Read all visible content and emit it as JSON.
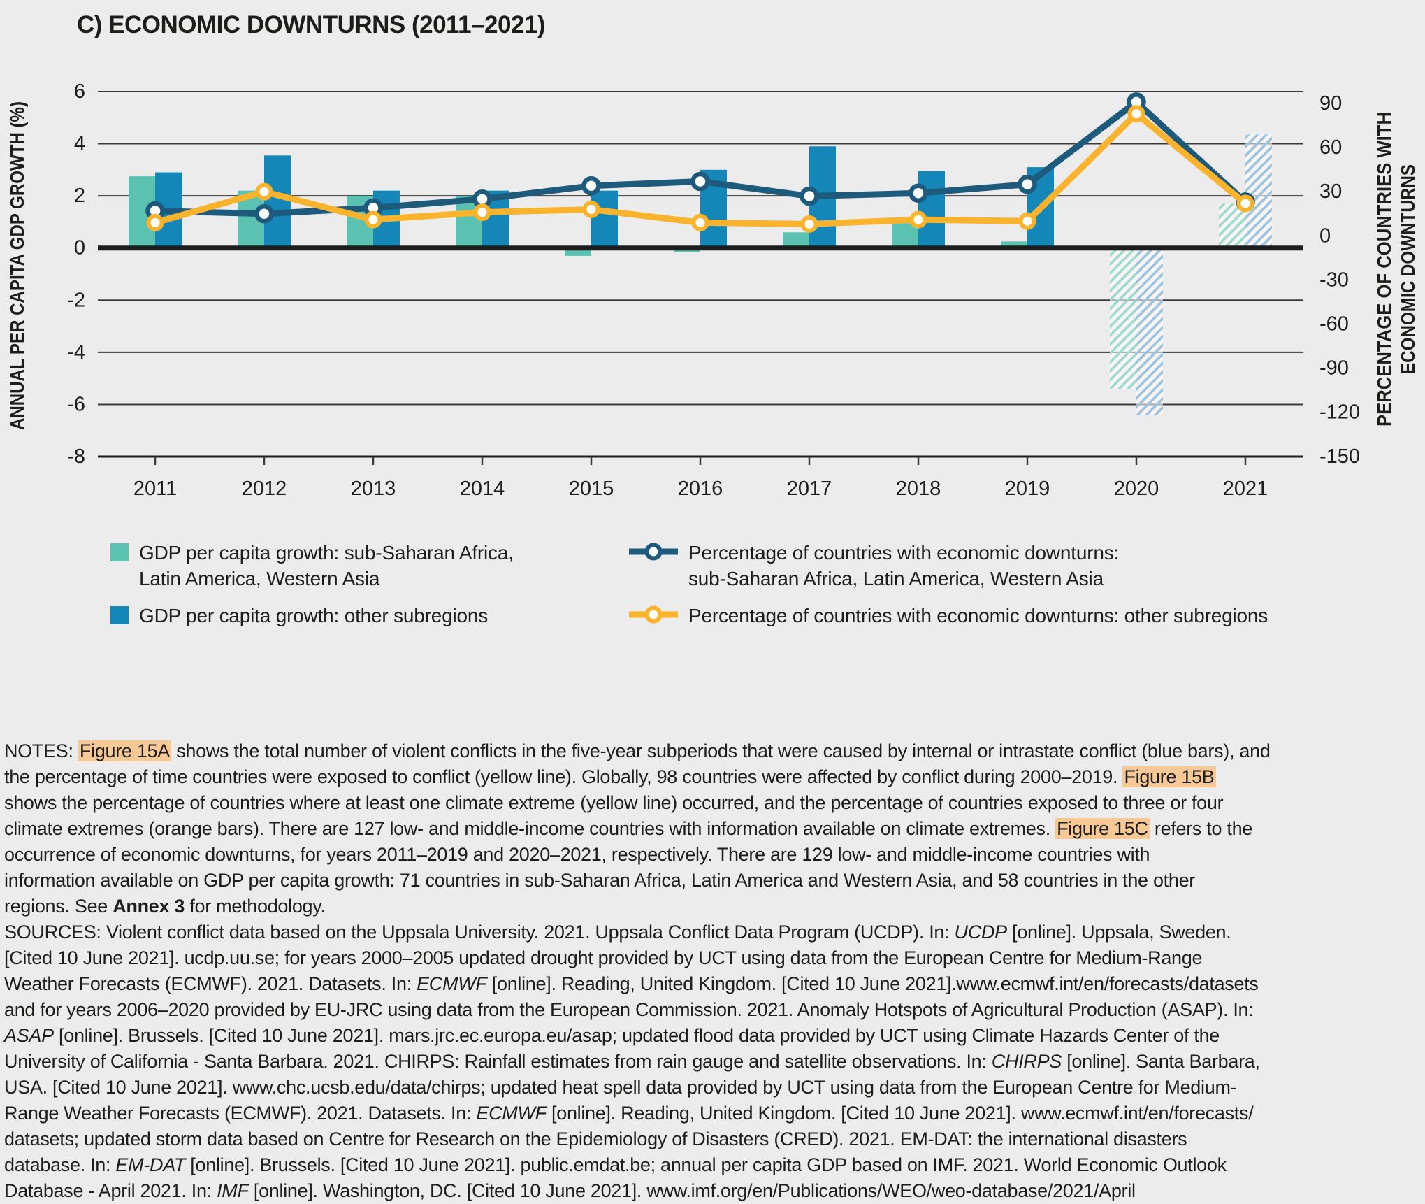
{
  "title": "C) ECONOMIC DOWNTURNS (2011–2021)",
  "colors": {
    "background": "#ECECEC",
    "ink": "#1D1D1B",
    "grid": "#3B3B3A",
    "teal": "#5BC2B2",
    "blue": "#1487B8",
    "navy": "#1E5A7C",
    "yellow": "#F9B32D",
    "teal_hatch": "#9FD9CC",
    "blue_hatch": "#9FC2DC",
    "highlight": "#F8C995"
  },
  "chart_data": {
    "type": "bar+line (dual axis)",
    "categories": [
      "2011",
      "2012",
      "2013",
      "2014",
      "2015",
      "2016",
      "2017",
      "2018",
      "2019",
      "2020",
      "2021"
    ],
    "left_axis": {
      "label": "ANNUAL PER CAPITA GDP GROWTH (%)",
      "ticks": [
        6,
        4,
        2,
        0,
        -2,
        -4,
        -6,
        -8
      ],
      "range": [
        6,
        -8
      ],
      "grid": true
    },
    "right_axis": {
      "label_lines": [
        "PERCENTAGE OF COUNTRIES WITH",
        "ECONOMIC DOWNTURNS"
      ],
      "ticks": [
        90,
        60,
        30,
        0,
        -30,
        -60,
        -90,
        -120,
        -150
      ],
      "range": [
        90,
        -150
      ],
      "grid": false
    },
    "hatched_categories": [
      "2020",
      "2021"
    ],
    "bar_series": [
      {
        "name": "GDP per capita growth: sub-Saharan Africa, Latin America, Western Asia",
        "color": "teal",
        "axis": "left",
        "values": [
          2.75,
          2.2,
          2.0,
          2.0,
          -0.3,
          -0.15,
          0.6,
          0.95,
          0.25,
          -5.4,
          1.7
        ]
      },
      {
        "name": "GDP per capita growth: other subregions",
        "color": "blue",
        "axis": "left",
        "values": [
          2.9,
          3.55,
          2.2,
          2.2,
          2.2,
          3.0,
          3.9,
          2.95,
          3.1,
          -6.4,
          4.35
        ]
      }
    ],
    "line_series": [
      {
        "name": "Percentage of countries with economic downturns: sub-Saharan Africa, Latin America, Western Asia",
        "color": "navy",
        "axis": "right",
        "values": [
          17,
          15,
          19,
          25,
          34,
          37,
          27,
          29,
          35,
          91,
          23
        ]
      },
      {
        "name": "Percentage of countries with economic downturns: other subregions",
        "color": "yellow",
        "axis": "right",
        "values": [
          9,
          30,
          11,
          16,
          18,
          9,
          8,
          11,
          10,
          83,
          22
        ]
      }
    ],
    "legend_position": "below"
  },
  "legend": {
    "items": [
      {
        "type": "square",
        "color": "teal",
        "lines": [
          "GDP per capita growth: sub-Saharan Africa,",
          "Latin America, Western Asia"
        ]
      },
      {
        "type": "square",
        "color": "blue",
        "lines": [
          "GDP per capita growth: other subregions"
        ]
      },
      {
        "type": "line-marker",
        "color": "navy",
        "lines": [
          "Percentage of countries with economic downturns:",
          "sub-Saharan Africa, Latin America, Western Asia"
        ]
      },
      {
        "type": "line-marker",
        "color": "yellow",
        "lines": [
          "Percentage of countries with economic downturns: other subregions"
        ]
      }
    ]
  },
  "notes": {
    "lines": [
      [
        [
          "NOTES: ",
          ""
        ],
        [
          "Figure 15A",
          "hl"
        ],
        [
          " shows the total number of violent conflicts in the five-year subperiods that were caused by internal or intrastate conflict (blue bars), and",
          ""
        ]
      ],
      [
        [
          "the percentage of time countries were exposed to conflict (yellow line). Globally, 98 countries were affected by conflict during 2000–2019. ",
          ""
        ],
        [
          "Figure 15B",
          "hl"
        ]
      ],
      [
        [
          "shows the percentage of countries where at least one climate extreme (yellow line) occurred, and the percentage of countries exposed to three or four",
          ""
        ]
      ],
      [
        [
          "climate extremes (orange bars). There are 127 low- and middle-income countries with information available on climate extremes. ",
          ""
        ],
        [
          "Figure 15C",
          "hl"
        ],
        [
          " refers to the",
          ""
        ]
      ],
      [
        [
          "occurrence of economic downturns, for years 2011–2019 and 2020–2021, respectively. There are 129 low- and middle-income countries with",
          ""
        ]
      ],
      [
        [
          "information available on GDP per capita growth: 71 countries in sub-Saharan Africa, Latin America and Western Asia, and 58 countries in the other",
          ""
        ]
      ],
      [
        [
          "regions. See ",
          ""
        ],
        [
          "Annex 3",
          "b"
        ],
        [
          " for methodology.",
          ""
        ]
      ],
      [
        [
          "SOURCES: Violent conflict data based on the Uppsala University. 2021. Uppsala Conflict Data Program (UCDP). In: ",
          ""
        ],
        [
          "UCDP",
          "i"
        ],
        [
          " [online]. Uppsala, Sweden.",
          ""
        ]
      ],
      [
        [
          "[Cited 10 June 2021]. ucdp.uu.se; for years 2000–2005 updated drought provided by UCT using data from the European Centre for Medium-Range",
          ""
        ]
      ],
      [
        [
          "Weather Forecasts (ECMWF). 2021. Datasets. In: ",
          ""
        ],
        [
          "ECMWF",
          "i"
        ],
        [
          " [online]. Reading, United Kingdom. [Cited 10 June 2021].www.ecmwf.int/en/forecasts/datasets",
          ""
        ]
      ],
      [
        [
          "and for years 2006–2020 provided by EU-JRC using data from the European Commission. 2021. Anomaly Hotspots of Agricultural Production (ASAP). In:",
          ""
        ]
      ],
      [
        [
          "ASAP",
          "i"
        ],
        [
          " [online]. Brussels. [Cited 10 June 2021]. mars.jrc.ec.europa.eu/asap; updated flood data provided by UCT using Climate Hazards Center of the",
          ""
        ]
      ],
      [
        [
          "University of California - Santa Barbara. 2021. CHIRPS: Rainfall estimates from rain gauge and satellite observations. In: ",
          ""
        ],
        [
          "CHIRPS",
          "i"
        ],
        [
          " [online]. Santa Barbara,",
          ""
        ]
      ],
      [
        [
          "USA. [Cited 10 June 2021]. www.chc.ucsb.edu/data/chirps; updated heat spell data provided by UCT using data from the European Centre for Medium-",
          ""
        ]
      ],
      [
        [
          "Range Weather Forecasts (ECMWF). 2021. Datasets. In: ",
          ""
        ],
        [
          "ECMWF",
          "i"
        ],
        [
          " [online]. Reading, United Kingdom. [Cited 10 June 2021]. www.ecmwf.int/en/forecasts/",
          ""
        ]
      ],
      [
        [
          "datasets; updated storm data based on Centre for Research on the Epidemiology of Disasters (CRED). 2021. EM-DAT: the international disasters",
          ""
        ]
      ],
      [
        [
          "database. In: ",
          ""
        ],
        [
          "EM-DAT",
          "i"
        ],
        [
          " [online]. Brussels. [Cited 10 June 2021]. public.emdat.be; annual per capita GDP based on IMF. 2021. World Economic Outlook",
          ""
        ]
      ],
      [
        [
          "Database - April 2021. In: ",
          ""
        ],
        [
          "IMF",
          "i"
        ],
        [
          " [online]. Washington, DC. [Cited 10 June 2021]. www.imf.org/en/Publications/WEO/weo-database/2021/April",
          ""
        ]
      ]
    ]
  }
}
